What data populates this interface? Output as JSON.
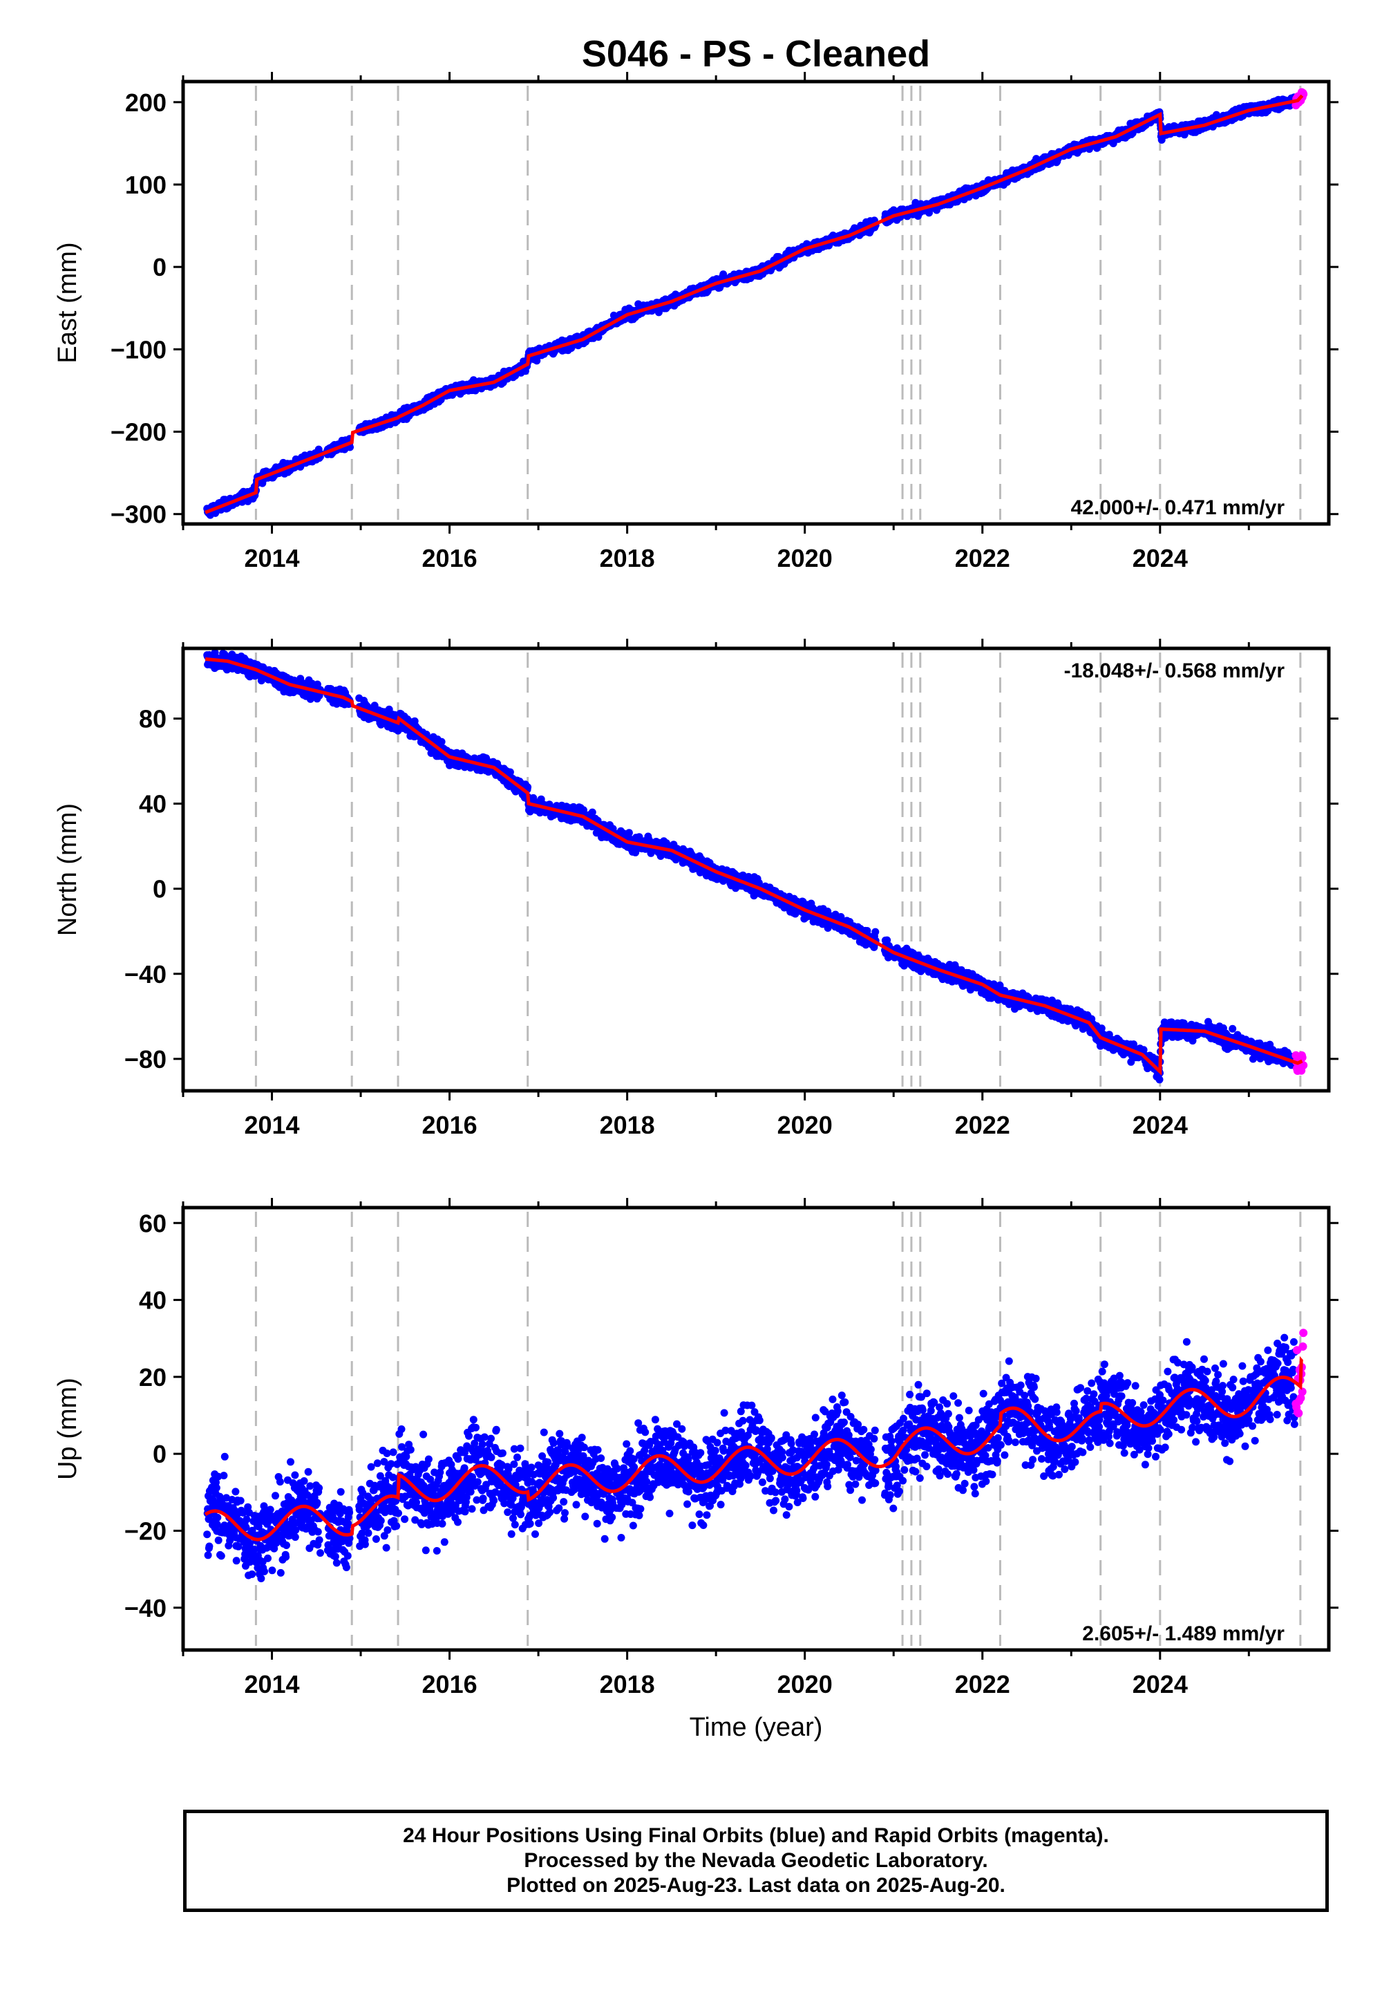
{
  "colors": {
    "final": "#0000ff",
    "rapid": "#ff00ff",
    "model": "#ff0000",
    "event_line": "#bbbbbb"
  },
  "chart_data": [
    {
      "type": "scatter",
      "title": "S046  - PS - Cleaned",
      "ylabel": "East (mm)",
      "xlabel": "",
      "xlim": [
        2013.0,
        2025.9
      ],
      "ylim": [
        -312,
        225
      ],
      "yticks": [
        -300,
        -200,
        -100,
        0,
        100,
        200
      ],
      "xticks": [
        2014,
        2016,
        2018,
        2020,
        2022,
        2024
      ],
      "rate": "42.000+/- 0.471 mm/yr",
      "rate_position": "bottom-right",
      "events": [
        2013.82,
        2014.9,
        2015.42,
        2016.88,
        2021.1,
        2021.2,
        2021.3,
        2022.2,
        2023.33,
        2024.0,
        2025.58
      ],
      "model": [
        [
          2013.25,
          -298
        ],
        [
          2013.82,
          -274
        ],
        [
          2013.83,
          -258
        ],
        [
          2014.9,
          -213
        ],
        [
          2014.91,
          -201
        ],
        [
          2015.42,
          -183
        ],
        [
          2015.43,
          -182
        ],
        [
          2015.7,
          -168
        ],
        [
          2016.0,
          -150
        ],
        [
          2016.5,
          -140
        ],
        [
          2016.88,
          -118
        ],
        [
          2016.89,
          -108
        ],
        [
          2017.5,
          -88
        ],
        [
          2018.0,
          -58
        ],
        [
          2018.5,
          -42
        ],
        [
          2019.0,
          -20
        ],
        [
          2019.5,
          -5
        ],
        [
          2020.0,
          22
        ],
        [
          2020.5,
          38
        ],
        [
          2021.0,
          62
        ],
        [
          2021.5,
          76
        ],
        [
          2022.0,
          96
        ],
        [
          2022.5,
          118
        ],
        [
          2023.0,
          143
        ],
        [
          2023.5,
          158
        ],
        [
          2024.0,
          185
        ],
        [
          2024.01,
          162
        ],
        [
          2024.5,
          172
        ],
        [
          2025.0,
          190
        ],
        [
          2025.55,
          202
        ],
        [
          2025.6,
          208
        ]
      ],
      "noise": 4
    },
    {
      "type": "scatter",
      "title": "",
      "ylabel": "North (mm)",
      "xlabel": "",
      "xlim": [
        2013.0,
        2025.9
      ],
      "ylim": [
        -95,
        113
      ],
      "yticks": [
        -80,
        -40,
        0,
        40,
        80
      ],
      "xticks": [
        2014,
        2016,
        2018,
        2020,
        2022,
        2024
      ],
      "rate": "-18.048+/- 0.568 mm/yr",
      "rate_position": "top-right",
      "events": [
        2013.82,
        2014.9,
        2015.42,
        2016.88,
        2021.1,
        2021.2,
        2021.3,
        2022.2,
        2023.33,
        2024.0,
        2025.58
      ],
      "model": [
        [
          2013.25,
          108
        ],
        [
          2013.5,
          107
        ],
        [
          2013.82,
          103
        ],
        [
          2014.2,
          96
        ],
        [
          2014.8,
          90
        ],
        [
          2014.9,
          88
        ],
        [
          2014.91,
          86
        ],
        [
          2015.42,
          78
        ],
        [
          2015.43,
          80
        ],
        [
          2016.0,
          62
        ],
        [
          2016.5,
          57
        ],
        [
          2016.88,
          45
        ],
        [
          2016.89,
          40
        ],
        [
          2017.5,
          34
        ],
        [
          2018.0,
          22
        ],
        [
          2018.5,
          18
        ],
        [
          2019.0,
          8
        ],
        [
          2019.5,
          0
        ],
        [
          2020.0,
          -10
        ],
        [
          2020.5,
          -18
        ],
        [
          2021.0,
          -30
        ],
        [
          2021.5,
          -38
        ],
        [
          2022.0,
          -45
        ],
        [
          2022.2,
          -50
        ],
        [
          2022.7,
          -55
        ],
        [
          2023.2,
          -63
        ],
        [
          2023.33,
          -70
        ],
        [
          2023.8,
          -78
        ],
        [
          2024.0,
          -86
        ],
        [
          2024.01,
          -66
        ],
        [
          2024.5,
          -67
        ],
        [
          2025.0,
          -74
        ],
        [
          2025.55,
          -82
        ],
        [
          2025.6,
          -81
        ]
      ],
      "noise": 2.5
    },
    {
      "type": "scatter",
      "title": "",
      "ylabel": "Up (mm)",
      "xlabel": "Time (year)",
      "xlim": [
        2013.0,
        2025.9
      ],
      "ylim": [
        -51,
        64
      ],
      "yticks": [
        -40,
        -20,
        0,
        20,
        40,
        60
      ],
      "xticks": [
        2014,
        2016,
        2018,
        2020,
        2022,
        2024
      ],
      "rate": "2.605+/- 1.489 mm/yr",
      "rate_position": "bottom-right",
      "events": [
        2013.82,
        2014.9,
        2015.42,
        2016.88,
        2021.1,
        2021.2,
        2021.3,
        2022.2,
        2023.33,
        2024.0,
        2025.58
      ],
      "model": [
        [
          2013.25,
          -19
        ],
        [
          2014.9,
          -17
        ],
        [
          2014.91,
          -15
        ],
        [
          2015.42,
          -15
        ],
        [
          2015.43,
          -9
        ],
        [
          2016.88,
          -6
        ],
        [
          2016.89,
          -8
        ],
        [
          2019.0,
          -3
        ],
        [
          2021.0,
          1
        ],
        [
          2021.1,
          2
        ],
        [
          2022.2,
          5
        ],
        [
          2022.21,
          8
        ],
        [
          2023.33,
          7
        ],
        [
          2023.34,
          9
        ],
        [
          2024.0,
          12
        ],
        [
          2025.0,
          14
        ],
        [
          2025.58,
          17
        ],
        [
          2025.59,
          24
        ]
      ],
      "seasonal_amp": 4,
      "noise": 7
    }
  ],
  "footer": {
    "line1": "24 Hour Positions Using Final Orbits (blue) and Rapid Orbits (magenta).",
    "line2": "Processed by the Nevada Geodetic Laboratory.",
    "line3": "Plotted on 2025-Aug-23. Last data on 2025-Aug-20."
  }
}
